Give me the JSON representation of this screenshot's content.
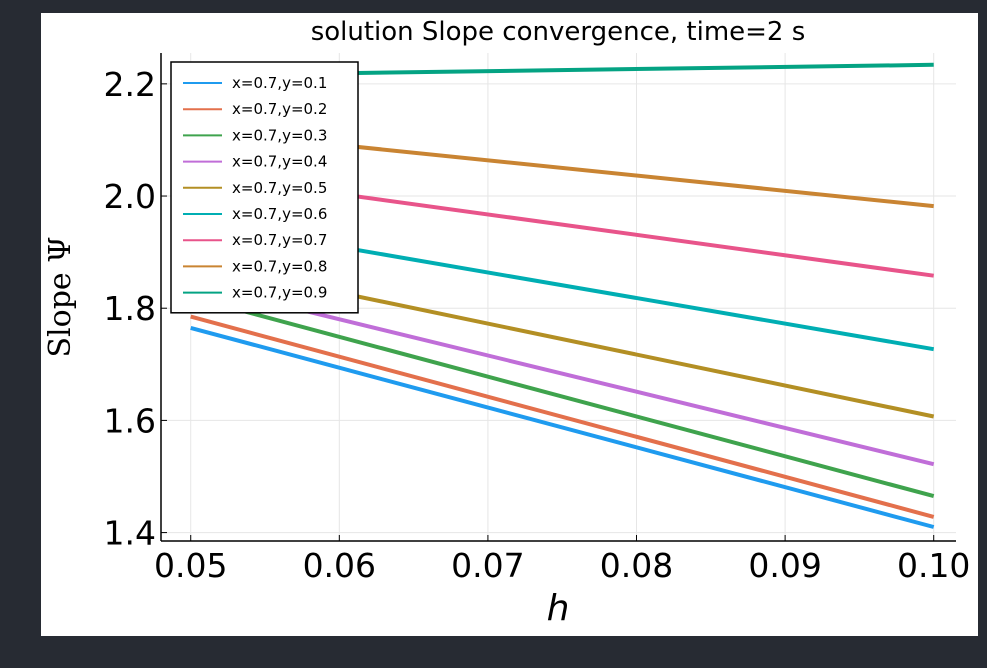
{
  "chart_data": {
    "type": "line",
    "title": "solution Slope convergence, time=2 s",
    "xlabel": "h",
    "ylabel": "Slope Ψ",
    "xlim": [
      0.048,
      0.1015
    ],
    "ylim": [
      1.385,
      2.255
    ],
    "xticks": [
      0.05,
      0.06,
      0.07,
      0.08,
      0.09,
      0.1
    ],
    "xtick_labels": [
      "0.05",
      "0.06",
      "0.07",
      "0.08",
      "0.09",
      "0.10"
    ],
    "yticks": [
      1.4,
      1.6,
      1.8,
      2.0,
      2.2
    ],
    "ytick_labels": [
      "1.4",
      "1.6",
      "1.8",
      "2.0",
      "2.2"
    ],
    "grid": true,
    "legend_position": "top-left",
    "series": [
      {
        "name": "x=0.7,y=0.1",
        "color": "#1f9bef",
        "x": [
          0.05,
          0.1
        ],
        "y": [
          1.765,
          1.41
        ]
      },
      {
        "name": "x=0.7,y=0.2",
        "color": "#e3704c",
        "x": [
          0.05,
          0.1
        ],
        "y": [
          1.785,
          1.428
        ]
      },
      {
        "name": "x=0.7,y=0.3",
        "color": "#3fa34d",
        "x": [
          0.05,
          0.1
        ],
        "y": [
          1.82,
          1.465
        ]
      },
      {
        "name": "x=0.7,y=0.4",
        "color": "#c06ed8",
        "x": [
          0.05,
          0.1
        ],
        "y": [
          1.845,
          1.522
        ]
      },
      {
        "name": "x=0.7,y=0.5",
        "color": "#b38f24",
        "x": [
          0.05,
          0.1
        ],
        "y": [
          1.883,
          1.607
        ]
      },
      {
        "name": "x=0.7,y=0.6",
        "color": "#00aeb3",
        "x": [
          0.05,
          0.1
        ],
        "y": [
          1.955,
          1.727
        ]
      },
      {
        "name": "x=0.7,y=0.7",
        "color": "#e8548a",
        "x": [
          0.05,
          0.1
        ],
        "y": [
          2.04,
          1.858
        ]
      },
      {
        "name": "x=0.7,y=0.8",
        "color": "#c98432",
        "x": [
          0.05,
          0.1
        ],
        "y": [
          2.118,
          1.982
        ]
      },
      {
        "name": "x=0.7,y=0.9",
        "color": "#04a383",
        "x": [
          0.05,
          0.1
        ],
        "y": [
          2.215,
          2.234
        ]
      }
    ]
  }
}
